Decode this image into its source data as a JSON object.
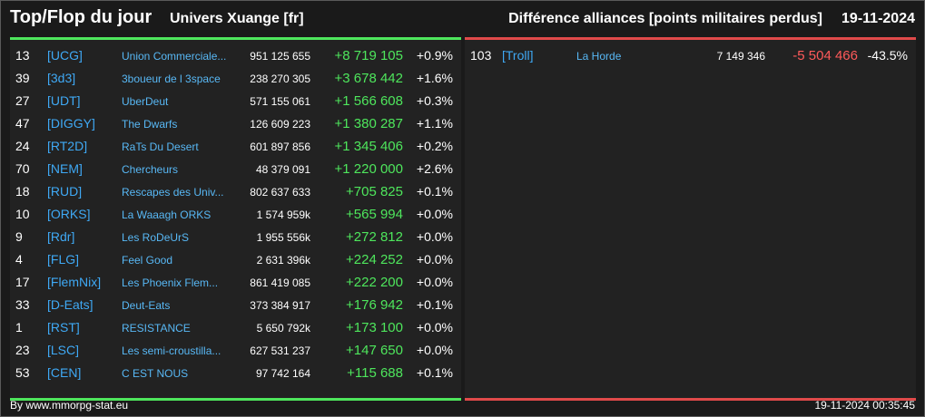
{
  "header": {
    "title": "Top/Flop du jour",
    "universe": "Univers Xuange [fr]",
    "subtitle": "Différence alliances [points militaires perdus]",
    "date": "19-11-2024"
  },
  "colors": {
    "positive": "#4ee65c",
    "negative": "#e04a4a",
    "tag": "#3fa9f5"
  },
  "top": [
    {
      "rank": "13",
      "tag": "[UCG]",
      "name": "Union Commerciale...",
      "points": "951 125 655",
      "diff": "+8 719 105",
      "pct": "+0.9%"
    },
    {
      "rank": "39",
      "tag": "[3d3]",
      "name": "3boueur de l 3space",
      "points": "238 270 305",
      "diff": "+3 678 442",
      "pct": "+1.6%"
    },
    {
      "rank": "27",
      "tag": "[UDT]",
      "name": "UberDeut",
      "points": "571 155 061",
      "diff": "+1 566 608",
      "pct": "+0.3%"
    },
    {
      "rank": "47",
      "tag": "[DIGGY]",
      "name": "The Dwarfs",
      "points": "126 609 223",
      "diff": "+1 380 287",
      "pct": "+1.1%"
    },
    {
      "rank": "24",
      "tag": "[RT2D]",
      "name": "RaTs Du Desert",
      "points": "601 897 856",
      "diff": "+1 345 406",
      "pct": "+0.2%"
    },
    {
      "rank": "70",
      "tag": "[NEM]",
      "name": "Chercheurs",
      "points": "48 379 091",
      "diff": "+1 220 000",
      "pct": "+2.6%"
    },
    {
      "rank": "18",
      "tag": "[RUD]",
      "name": "Rescapes des Univ...",
      "points": "802 637 633",
      "diff": "+705 825",
      "pct": "+0.1%"
    },
    {
      "rank": "10",
      "tag": "[ORKS]",
      "name": "La Waaagh ORKS",
      "points": "1 574 959k",
      "diff": "+565 994",
      "pct": "+0.0%"
    },
    {
      "rank": "9",
      "tag": "[Rdr]",
      "name": "Les RoDeUrS",
      "points": "1 955 556k",
      "diff": "+272 812",
      "pct": "+0.0%"
    },
    {
      "rank": "4",
      "tag": "[FLG]",
      "name": "Feel Good",
      "points": "2 631 396k",
      "diff": "+224 252",
      "pct": "+0.0%"
    },
    {
      "rank": "17",
      "tag": "[FlemNix]",
      "name": "Les Phoenix Flem...",
      "points": "861 419 085",
      "diff": "+222 200",
      "pct": "+0.0%"
    },
    {
      "rank": "33",
      "tag": "[D-Eats]",
      "name": "Deut-Eats",
      "points": "373 384 917",
      "diff": "+176 942",
      "pct": "+0.1%"
    },
    {
      "rank": "1",
      "tag": "[RST]",
      "name": "RESISTANCE",
      "points": "5 650 792k",
      "diff": "+173 100",
      "pct": "+0.0%"
    },
    {
      "rank": "23",
      "tag": "[LSC]",
      "name": "Les semi-croustilla...",
      "points": "627 531 237",
      "diff": "+147 650",
      "pct": "+0.0%"
    },
    {
      "rank": "53",
      "tag": "[CEN]",
      "name": "C EST NOUS",
      "points": "97 742 164",
      "diff": "+115 688",
      "pct": "+0.1%"
    }
  ],
  "flop": [
    {
      "rank": "103",
      "tag": "[Troll]",
      "name": "La Horde",
      "points": "7 149 346",
      "diff": "-5 504 466",
      "pct": "-43.5%"
    }
  ],
  "footer": {
    "source": "By www.mmorpg-stat.eu",
    "timestamp": "19-11-2024 00:35:45"
  }
}
